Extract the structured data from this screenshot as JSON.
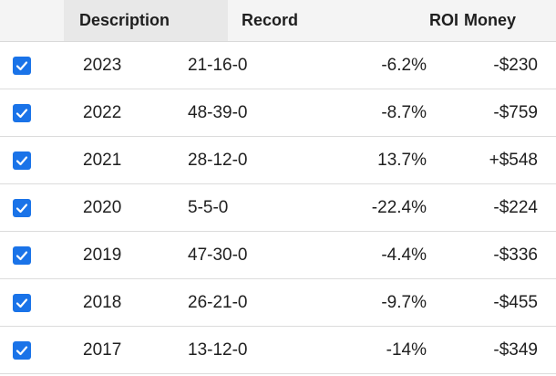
{
  "header": {
    "description": "Description",
    "record": "Record",
    "roi": "ROI",
    "money": "Money"
  },
  "rows": [
    {
      "description": "2023",
      "record": "21-16-0",
      "roi": "-6.2%",
      "money": "-$230",
      "checked": true
    },
    {
      "description": "2022",
      "record": "48-39-0",
      "roi": "-8.7%",
      "money": "-$759",
      "checked": true
    },
    {
      "description": "2021",
      "record": "28-12-0",
      "roi": "13.7%",
      "money": "+$548",
      "checked": true
    },
    {
      "description": "2020",
      "record": "5-5-0",
      "roi": "-22.4%",
      "money": "-$224",
      "checked": true
    },
    {
      "description": "2019",
      "record": "47-30-0",
      "roi": "-4.4%",
      "money": "-$336",
      "checked": true
    },
    {
      "description": "2018",
      "record": "26-21-0",
      "roi": "-9.7%",
      "money": "-$455",
      "checked": true
    },
    {
      "description": "2017",
      "record": "13-12-0",
      "roi": "-14%",
      "money": "-$349",
      "checked": true
    }
  ],
  "colors": {
    "checkbox": "#1a73e8",
    "header_bg": "#f4f4f4",
    "sorted_header_bg": "#e8e8e8"
  }
}
